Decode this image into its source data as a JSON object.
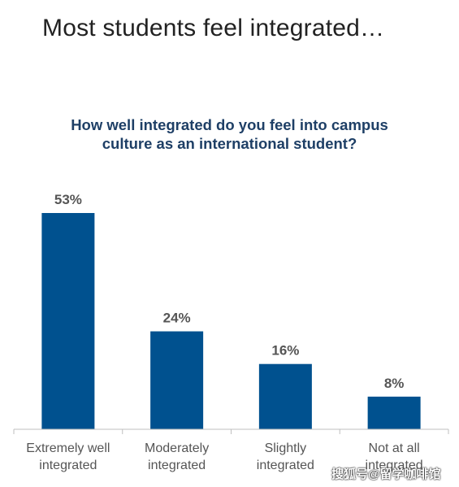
{
  "headline": "Most students feel integrated…",
  "chart_data": {
    "type": "bar",
    "title_lines": [
      "How well integrated do you feel into campus",
      "culture as an international student?"
    ],
    "categories": [
      [
        "Extremely well",
        "integrated"
      ],
      [
        "Moderately",
        "integrated"
      ],
      [
        "Slightly",
        "integrated"
      ],
      [
        "Not at all",
        "integrated"
      ]
    ],
    "values": [
      53,
      24,
      16,
      8
    ],
    "value_labels": [
      "53%",
      "24%",
      "16%",
      "8%"
    ],
    "ylim": [
      0,
      53
    ],
    "grid": false,
    "legend": "none",
    "bar_color": "#00518f",
    "label_color": "#555555"
  },
  "watermark": "搜狐号@留学咖啡馆"
}
